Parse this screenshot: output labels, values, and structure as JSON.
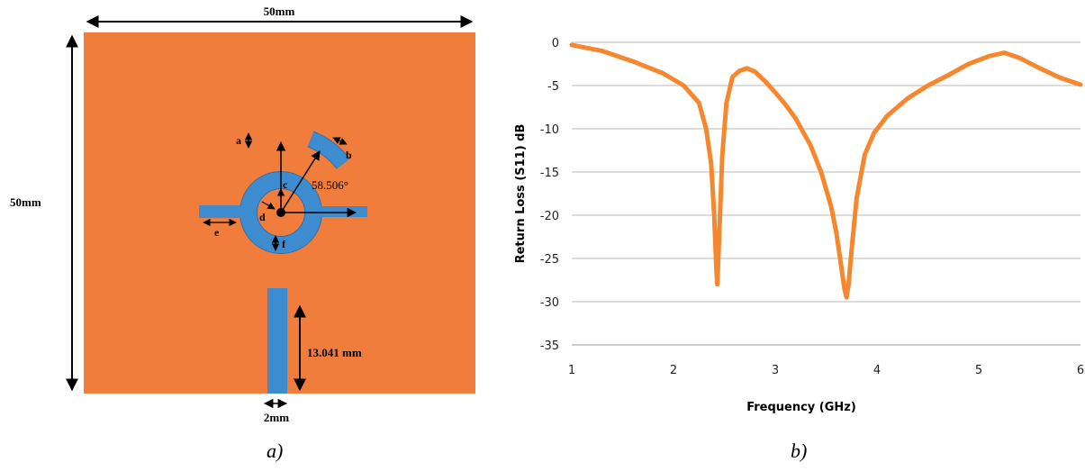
{
  "antenna": {
    "width_label": "50mm",
    "height_label": "50mm",
    "feed_width_label": "2mm",
    "feed_length_label": "13.041 mm",
    "angle_label": "58.506°",
    "params": {
      "a": "a",
      "b": "b",
      "c": "c",
      "d": "d",
      "e": "e",
      "f": "f"
    },
    "colors": {
      "substrate": "#F07D3C",
      "patch": "#3E8CD0",
      "outline": "#2E6FA8",
      "dim": "#000000"
    }
  },
  "captions": {
    "a": "a)",
    "b": "b)"
  },
  "chart_data": {
    "type": "line",
    "xlabel": "Frequency (GHz)",
    "ylabel": "Return Loss (S11) dB",
    "xlim": [
      1,
      6
    ],
    "ylim": [
      -35,
      0
    ],
    "xticks": [
      "1",
      "2",
      "3",
      "4",
      "5",
      "6"
    ],
    "yticks": [
      "0",
      "-5",
      "-10",
      "-15",
      "-20",
      "-25",
      "-30",
      "-35"
    ],
    "grid": "horizontal",
    "color": "#F5882F",
    "series": [
      {
        "x": [
          1.0,
          1.3,
          1.6,
          1.9,
          2.1,
          2.25,
          2.32,
          2.37,
          2.4,
          2.42,
          2.43,
          2.45,
          2.48,
          2.52,
          2.58,
          2.65,
          2.72,
          2.8,
          2.9,
          3.0,
          3.1,
          3.2,
          3.35,
          3.45,
          3.55,
          3.6,
          3.65,
          3.68,
          3.7,
          3.72,
          3.75,
          3.8,
          3.88,
          3.97,
          4.1,
          4.3,
          4.5,
          4.7,
          4.9,
          5.1,
          5.25,
          5.4,
          5.6,
          5.8,
          6.0
        ],
        "y": [
          -0.3,
          -1.0,
          -2.2,
          -3.6,
          -5.0,
          -7.0,
          -10.0,
          -14.0,
          -20.0,
          -26.0,
          -28.0,
          -22.0,
          -13.0,
          -7.0,
          -4.0,
          -3.3,
          -3.0,
          -3.4,
          -4.5,
          -5.8,
          -7.2,
          -8.8,
          -12.0,
          -15.0,
          -19.0,
          -22.0,
          -26.0,
          -28.5,
          -29.5,
          -28.0,
          -24.0,
          -18.0,
          -13.0,
          -10.5,
          -8.5,
          -6.5,
          -5.0,
          -3.8,
          -2.5,
          -1.6,
          -1.2,
          -1.8,
          -3.0,
          -4.1,
          -4.9
        ]
      }
    ]
  }
}
